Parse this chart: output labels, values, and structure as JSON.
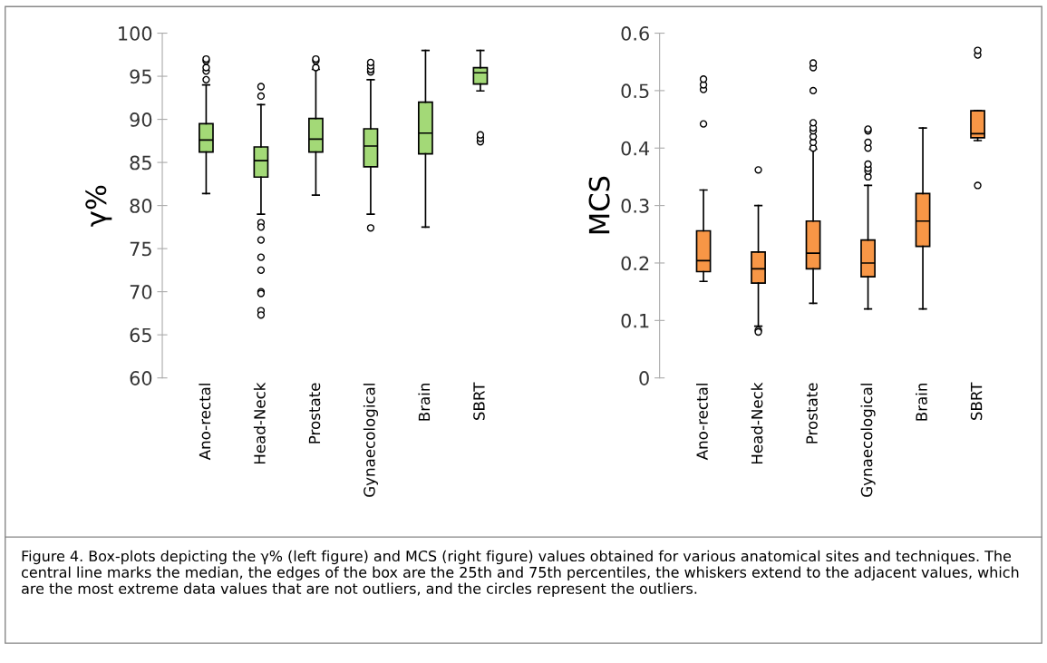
{
  "chart_data": [
    {
      "type": "box",
      "ylabel": "γ%",
      "categories": [
        "Ano-rectal",
        "Head-Neck",
        "Prostate",
        "Gynaecological",
        "Brain",
        "SBRT"
      ],
      "color": "#a3d977",
      "ylim": [
        60,
        100
      ],
      "yticks": [
        60,
        65,
        70,
        75,
        80,
        85,
        90,
        95,
        100
      ],
      "grid": false,
      "boxes": [
        {
          "low": 81.4,
          "q1": 86.2,
          "median": 87.6,
          "q3": 89.5,
          "high": 94,
          "outliers": [
            94.6,
            95.6,
            96,
            96.8,
            97
          ]
        },
        {
          "low": 79,
          "q1": 83.3,
          "median": 85.2,
          "q3": 86.8,
          "high": 91.7,
          "outliers": [
            93.8,
            92.7,
            78,
            77.5,
            76,
            74,
            72.5,
            70,
            69.8,
            67.8,
            67.3
          ]
        },
        {
          "low": 81.2,
          "q1": 86.2,
          "median": 87.7,
          "q3": 90.1,
          "high": 95.8,
          "outliers": [
            96,
            96.8,
            97
          ]
        },
        {
          "low": 79,
          "q1": 84.5,
          "median": 86.9,
          "q3": 88.9,
          "high": 94.6,
          "outliers": [
            95.5,
            95.8,
            96.2,
            96.6,
            77.4
          ]
        },
        {
          "low": 77.5,
          "q1": 86,
          "median": 88.4,
          "q3": 92,
          "high": 98
        },
        {
          "low": 93.3,
          "q1": 94.1,
          "median": 95.4,
          "q3": 96,
          "high": 98,
          "outliers": [
            87.4,
            87.8,
            88.2
          ]
        }
      ]
    },
    {
      "type": "box",
      "ylabel": "MCS",
      "categories": [
        "Ano-rectal",
        "Head-Neck",
        "Prostate",
        "Gynaecological",
        "Brain",
        "SBRT"
      ],
      "color": "#f79646",
      "ylim": [
        0,
        0.6
      ],
      "yticks": [
        0,
        0.1,
        0.2,
        0.3,
        0.4,
        0.5,
        0.6
      ],
      "grid": false,
      "boxes": [
        {
          "low": 0.168,
          "q1": 0.185,
          "median": 0.204,
          "q3": 0.256,
          "high": 0.327,
          "outliers": [
            0.442,
            0.502,
            0.51,
            0.52
          ]
        },
        {
          "low": 0.09,
          "q1": 0.165,
          "median": 0.19,
          "q3": 0.219,
          "high": 0.3,
          "outliers": [
            0.362,
            0.083,
            0.08
          ]
        },
        {
          "low": 0.13,
          "q1": 0.19,
          "median": 0.217,
          "q3": 0.273,
          "high": 0.398,
          "outliers": [
            0.4,
            0.41,
            0.42,
            0.43,
            0.435,
            0.444,
            0.5,
            0.54,
            0.548
          ]
        },
        {
          "low": 0.12,
          "q1": 0.176,
          "median": 0.2,
          "q3": 0.24,
          "high": 0.335,
          "outliers": [
            0.35,
            0.36,
            0.365,
            0.372,
            0.4,
            0.41,
            0.43,
            0.433
          ]
        },
        {
          "low": 0.12,
          "q1": 0.229,
          "median": 0.273,
          "q3": 0.321,
          "high": 0.435
        },
        {
          "low": 0.413,
          "q1": 0.418,
          "median": 0.425,
          "q3": 0.465,
          "high": 0.465,
          "outliers": [
            0.335,
            0.562,
            0.57
          ]
        }
      ],
      "annotations": [
        "Figure 4. Box-plots depicting the γ% (left figure) and MCS (right figure) values obtained for various anatomical sites and techniques. The central line marks the median, the edges of the box are the 25th and 75th percentiles, the whiskers extend to the adjacent values, which are the most extreme data values that are not outliers, and the circles represent the outliers."
      ]
    }
  ]
}
